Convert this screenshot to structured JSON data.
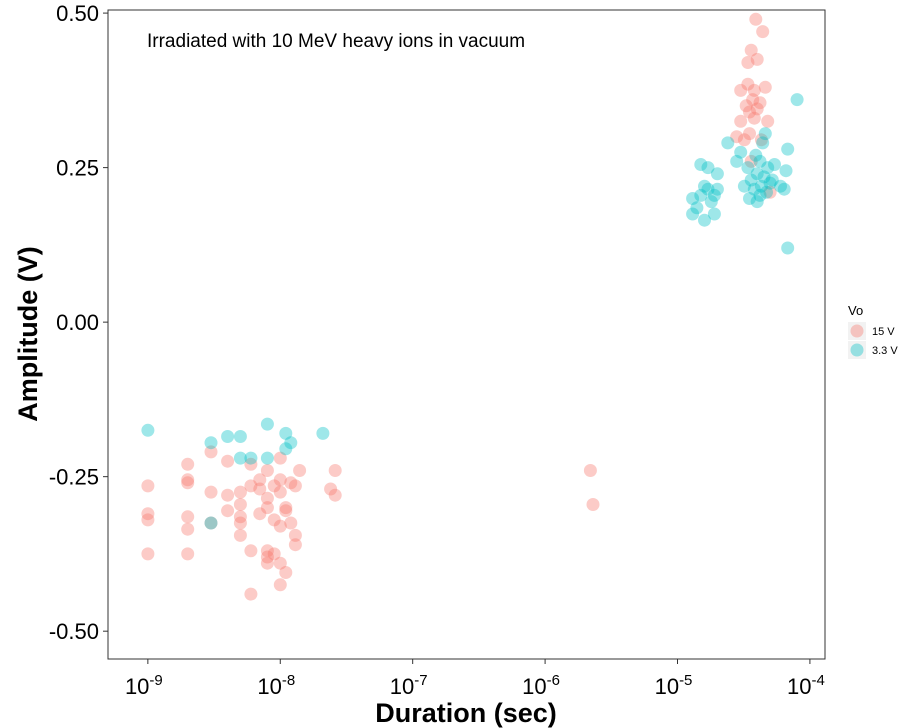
{
  "chart_data": {
    "type": "scatter",
    "title": "",
    "annotation": "Irradiated with 10 MeV heavy ions in vacuum",
    "xlabel": "Duration (sec)",
    "ylabel": "Amplitude (V)",
    "x_scale": "log10",
    "xlim": [
      5e-10,
      0.00013
    ],
    "ylim": [
      -0.545,
      0.505
    ],
    "x_ticks": [
      1e-09,
      1e-08,
      1e-07,
      1e-06,
      1e-05,
      0.0001
    ],
    "x_tick_labels": [
      {
        "base": "10",
        "exp": "-9"
      },
      {
        "base": "10",
        "exp": "-8"
      },
      {
        "base": "10",
        "exp": "-7"
      },
      {
        "base": "10",
        "exp": "-6"
      },
      {
        "base": "10",
        "exp": "-5"
      },
      {
        "base": "10",
        "exp": "-4"
      }
    ],
    "y_ticks": [
      0.5,
      0.25,
      0.0,
      -0.25,
      -0.5
    ],
    "y_tick_labels": [
      "0.50",
      "0.25",
      "0.00",
      "-0.25",
      "-0.50"
    ],
    "grid": false,
    "legend": {
      "title": "Vo",
      "position": "right"
    },
    "colors": {
      "15 V": "#F8766D",
      "3.3 V": "#00BFC4"
    },
    "series": [
      {
        "name": "15 V",
        "points": [
          [
            1e-09,
            -0.265
          ],
          [
            1e-09,
            -0.31
          ],
          [
            1e-09,
            -0.32
          ],
          [
            1e-09,
            -0.375
          ],
          [
            2e-09,
            -0.23
          ],
          [
            2e-09,
            -0.255
          ],
          [
            2e-09,
            -0.26
          ],
          [
            2e-09,
            -0.315
          ],
          [
            2e-09,
            -0.335
          ],
          [
            2e-09,
            -0.375
          ],
          [
            3e-09,
            -0.21
          ],
          [
            3e-09,
            -0.275
          ],
          [
            3e-09,
            -0.325
          ],
          [
            4e-09,
            -0.225
          ],
          [
            4e-09,
            -0.28
          ],
          [
            4e-09,
            -0.305
          ],
          [
            5e-09,
            -0.275
          ],
          [
            5e-09,
            -0.295
          ],
          [
            5e-09,
            -0.315
          ],
          [
            5e-09,
            -0.325
          ],
          [
            5e-09,
            -0.345
          ],
          [
            6e-09,
            -0.23
          ],
          [
            6e-09,
            -0.265
          ],
          [
            6e-09,
            -0.37
          ],
          [
            6e-09,
            -0.44
          ],
          [
            7e-09,
            -0.255
          ],
          [
            7e-09,
            -0.27
          ],
          [
            7e-09,
            -0.31
          ],
          [
            8e-09,
            -0.24
          ],
          [
            8e-09,
            -0.285
          ],
          [
            8e-09,
            -0.3
          ],
          [
            8e-09,
            -0.37
          ],
          [
            8e-09,
            -0.38
          ],
          [
            8e-09,
            -0.39
          ],
          [
            9e-09,
            -0.265
          ],
          [
            9e-09,
            -0.32
          ],
          [
            9e-09,
            -0.375
          ],
          [
            1e-08,
            -0.22
          ],
          [
            1e-08,
            -0.255
          ],
          [
            1e-08,
            -0.275
          ],
          [
            1e-08,
            -0.33
          ],
          [
            1e-08,
            -0.39
          ],
          [
            1e-08,
            -0.425
          ],
          [
            1.1e-08,
            -0.3
          ],
          [
            1.1e-08,
            -0.305
          ],
          [
            1.1e-08,
            -0.405
          ],
          [
            1.2e-08,
            -0.26
          ],
          [
            1.2e-08,
            -0.325
          ],
          [
            1.3e-08,
            -0.265
          ],
          [
            1.3e-08,
            -0.345
          ],
          [
            1.3e-08,
            -0.36
          ],
          [
            1.4e-08,
            -0.24
          ],
          [
            2.4e-08,
            -0.27
          ],
          [
            2.6e-08,
            -0.24
          ],
          [
            2.6e-08,
            -0.28
          ],
          [
            2.2e-06,
            -0.24
          ],
          [
            2.3e-06,
            -0.295
          ],
          [
            2.8e-05,
            0.3
          ],
          [
            3e-05,
            0.325
          ],
          [
            3e-05,
            0.375
          ],
          [
            3.2e-05,
            0.295
          ],
          [
            3.3e-05,
            0.35
          ],
          [
            3.4e-05,
            0.385
          ],
          [
            3.4e-05,
            0.42
          ],
          [
            3.5e-05,
            0.305
          ],
          [
            3.5e-05,
            0.34
          ],
          [
            3.6e-05,
            0.44
          ],
          [
            3.7e-05,
            0.36
          ],
          [
            3.8e-05,
            0.33
          ],
          [
            3.8e-05,
            0.375
          ],
          [
            3.9e-05,
            0.49
          ],
          [
            4e-05,
            0.345
          ],
          [
            4e-05,
            0.425
          ],
          [
            4.2e-05,
            0.355
          ],
          [
            4.3e-05,
            0.295
          ],
          [
            4.4e-05,
            0.47
          ],
          [
            4.6e-05,
            0.38
          ],
          [
            5e-05,
            0.21
          ],
          [
            3.6e-05,
            0.26
          ],
          [
            4.8e-05,
            0.325
          ]
        ]
      },
      {
        "name": "3.3 V",
        "points": [
          [
            1e-09,
            -0.175
          ],
          [
            3e-09,
            -0.195
          ],
          [
            3e-09,
            -0.325
          ],
          [
            4e-09,
            -0.185
          ],
          [
            5e-09,
            -0.185
          ],
          [
            5e-09,
            -0.22
          ],
          [
            6e-09,
            -0.22
          ],
          [
            8e-09,
            -0.165
          ],
          [
            8e-09,
            -0.22
          ],
          [
            1.1e-08,
            -0.18
          ],
          [
            1.1e-08,
            -0.205
          ],
          [
            1.2e-08,
            -0.195
          ],
          [
            2.1e-08,
            -0.18
          ],
          [
            1.3e-05,
            0.175
          ],
          [
            1.3e-05,
            0.2
          ],
          [
            1.4e-05,
            0.185
          ],
          [
            1.5e-05,
            0.255
          ],
          [
            1.5e-05,
            0.205
          ],
          [
            1.6e-05,
            0.165
          ],
          [
            1.6e-05,
            0.22
          ],
          [
            1.7e-05,
            0.215
          ],
          [
            1.7e-05,
            0.25
          ],
          [
            1.8e-05,
            0.195
          ],
          [
            1.9e-05,
            0.175
          ],
          [
            1.9e-05,
            0.205
          ],
          [
            2e-05,
            0.215
          ],
          [
            2e-05,
            0.24
          ],
          [
            2.4e-05,
            0.29
          ],
          [
            2.8e-05,
            0.26
          ],
          [
            3e-05,
            0.275
          ],
          [
            3.2e-05,
            0.22
          ],
          [
            3.4e-05,
            0.25
          ],
          [
            3.5e-05,
            0.2
          ],
          [
            3.6e-05,
            0.23
          ],
          [
            3.8e-05,
            0.215
          ],
          [
            3.9e-05,
            0.27
          ],
          [
            4e-05,
            0.195
          ],
          [
            4e-05,
            0.24
          ],
          [
            4.2e-05,
            0.205
          ],
          [
            4.2e-05,
            0.26
          ],
          [
            4.3e-05,
            0.22
          ],
          [
            4.4e-05,
            0.29
          ],
          [
            4.5e-05,
            0.235
          ],
          [
            4.6e-05,
            0.305
          ],
          [
            4.7e-05,
            0.21
          ],
          [
            4.8e-05,
            0.25
          ],
          [
            5e-05,
            0.225
          ],
          [
            5.2e-05,
            0.23
          ],
          [
            5.4e-05,
            0.255
          ],
          [
            6e-05,
            0.22
          ],
          [
            6.4e-05,
            0.215
          ],
          [
            6.6e-05,
            0.245
          ],
          [
            6.8e-05,
            0.28
          ],
          [
            6.8e-05,
            0.12
          ],
          [
            8e-05,
            0.36
          ]
        ]
      }
    ]
  }
}
